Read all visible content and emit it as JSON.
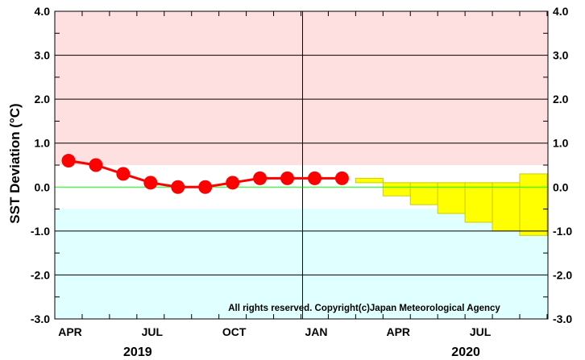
{
  "chart_data": {
    "type": "line",
    "ylabel": "SST Deviation (°C)",
    "ylim": [
      -3.0,
      4.0
    ],
    "yticks": [
      "4.0",
      "3.0",
      "2.0",
      "1.0",
      "0.0",
      "-1.0",
      "-2.0",
      "-3.0"
    ],
    "month_labels": [
      {
        "month": 0,
        "label": "APR"
      },
      {
        "month": 3,
        "label": "JUL"
      },
      {
        "month": 6,
        "label": "OCT"
      },
      {
        "month": 9,
        "label": "JAN"
      },
      {
        "month": 12,
        "label": "APR"
      },
      {
        "month": 15,
        "label": "JUL"
      }
    ],
    "year_labels": [
      {
        "month": 3,
        "label": "2019"
      },
      {
        "month": 15,
        "label": "2020"
      }
    ],
    "warm_threshold": 0.5,
    "cold_threshold": -0.5,
    "series": [
      {
        "kind": "observed",
        "points": [
          {
            "month": 0,
            "value": 0.6
          },
          {
            "month": 1,
            "value": 0.5
          },
          {
            "month": 2,
            "value": 0.3
          },
          {
            "month": 3,
            "value": 0.1
          },
          {
            "month": 4,
            "value": 0.0
          },
          {
            "month": 5,
            "value": 0.0
          },
          {
            "month": 6,
            "value": 0.1
          },
          {
            "month": 7,
            "value": 0.2
          },
          {
            "month": 8,
            "value": 0.2
          },
          {
            "month": 9,
            "value": 0.2
          },
          {
            "month": 10,
            "value": 0.2
          }
        ]
      },
      {
        "kind": "forecast-range",
        "boxes": [
          {
            "month": 11,
            "low": 0.1,
            "high": 0.2
          },
          {
            "month": 12,
            "low": -0.2,
            "high": 0.1
          },
          {
            "month": 13,
            "low": -0.4,
            "high": 0.1
          },
          {
            "month": 14,
            "low": -0.6,
            "high": 0.1
          },
          {
            "month": 15,
            "low": -0.8,
            "high": 0.1
          },
          {
            "month": 16,
            "low": -1.0,
            "high": 0.1
          },
          {
            "month": 17,
            "low": -1.1,
            "high": 0.3
          }
        ]
      }
    ],
    "colors": {
      "warm_band": "#ffe0e0",
      "cold_band": "#e0ffff",
      "observed": "#ff0000",
      "forecast": "#ffff00",
      "forecast_border": "#cccc00",
      "zero_line": "#00ff00"
    },
    "copyright": "All rights reserved. Copyright(c)Japan Meteorological Agency"
  }
}
